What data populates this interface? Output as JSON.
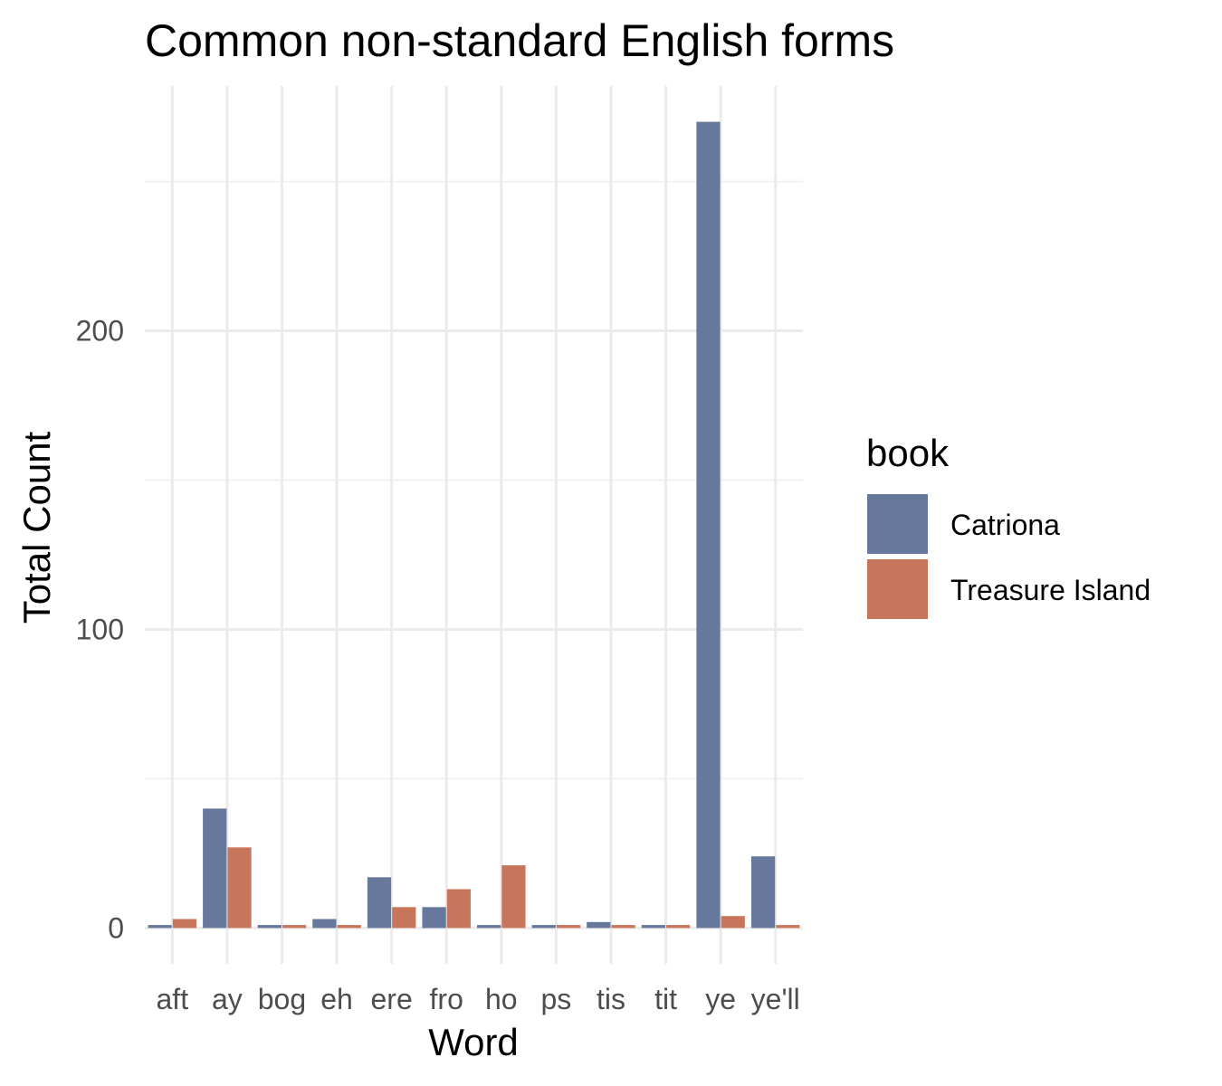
{
  "chart_data": {
    "type": "bar",
    "title": "Common non-standard English forms",
    "xlabel": "Word",
    "ylabel": "Total Count",
    "categories": [
      "aft",
      "ay",
      "bog",
      "eh",
      "ere",
      "fro",
      "ho",
      "ps",
      "tis",
      "tit",
      "ye",
      "ye'll"
    ],
    "series": [
      {
        "name": "Catriona",
        "color": "#66799c",
        "values": [
          1,
          40,
          1,
          3,
          17,
          7,
          1,
          1,
          2,
          1,
          270,
          24
        ]
      },
      {
        "name": "Treasure Island",
        "color": "#c8765b",
        "values": [
          3,
          27,
          1,
          1,
          7,
          13,
          21,
          1,
          1,
          1,
          4,
          1
        ]
      }
    ],
    "yticks": [
      0,
      100,
      200
    ],
    "ylim": [
      -12,
      282
    ],
    "legend_title": "book",
    "legend_position": "right",
    "grid": true,
    "background": "#ffffff"
  }
}
